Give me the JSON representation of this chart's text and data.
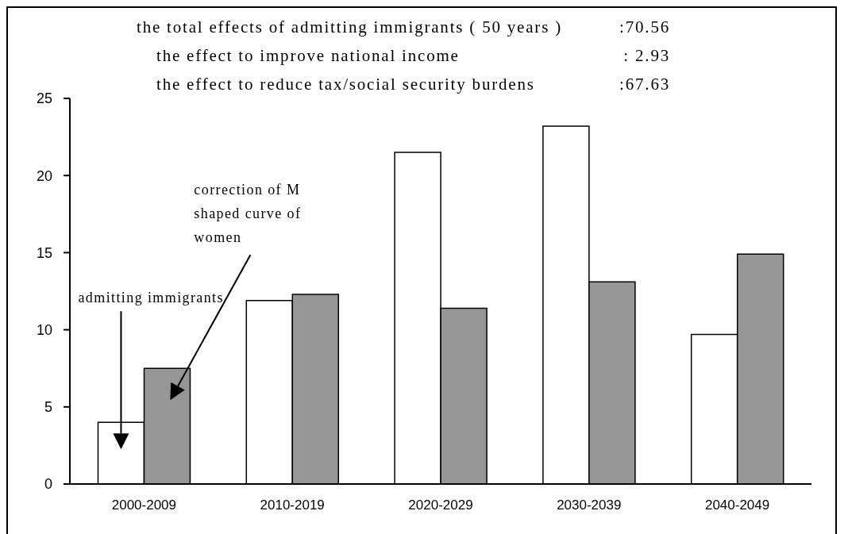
{
  "chart_data": {
    "type": "bar",
    "categories": [
      "2000-2009",
      "2010-2019",
      "2020-2029",
      "2030-2039",
      "2040-2049"
    ],
    "series": [
      {
        "color": "#ffffff",
        "values": [
          4.0,
          11.9,
          21.5,
          23.2,
          9.7
        ]
      },
      {
        "color": "#969696",
        "values": [
          7.5,
          12.3,
          11.4,
          13.1,
          14.9
        ]
      }
    ],
    "ylim": [
      0,
      25
    ],
    "yticks": [
      0,
      5,
      10,
      15,
      20,
      25
    ],
    "grid": false,
    "legend": false,
    "annotations": [
      "the total effects of admitting immigrants ( 50 years ) :70.56",
      "the effect to improve national income : 2.93",
      "the effect to reduce tax/social security burdens :67.63",
      "admitting immigrants",
      "correction of M shaped curve of women"
    ]
  }
}
